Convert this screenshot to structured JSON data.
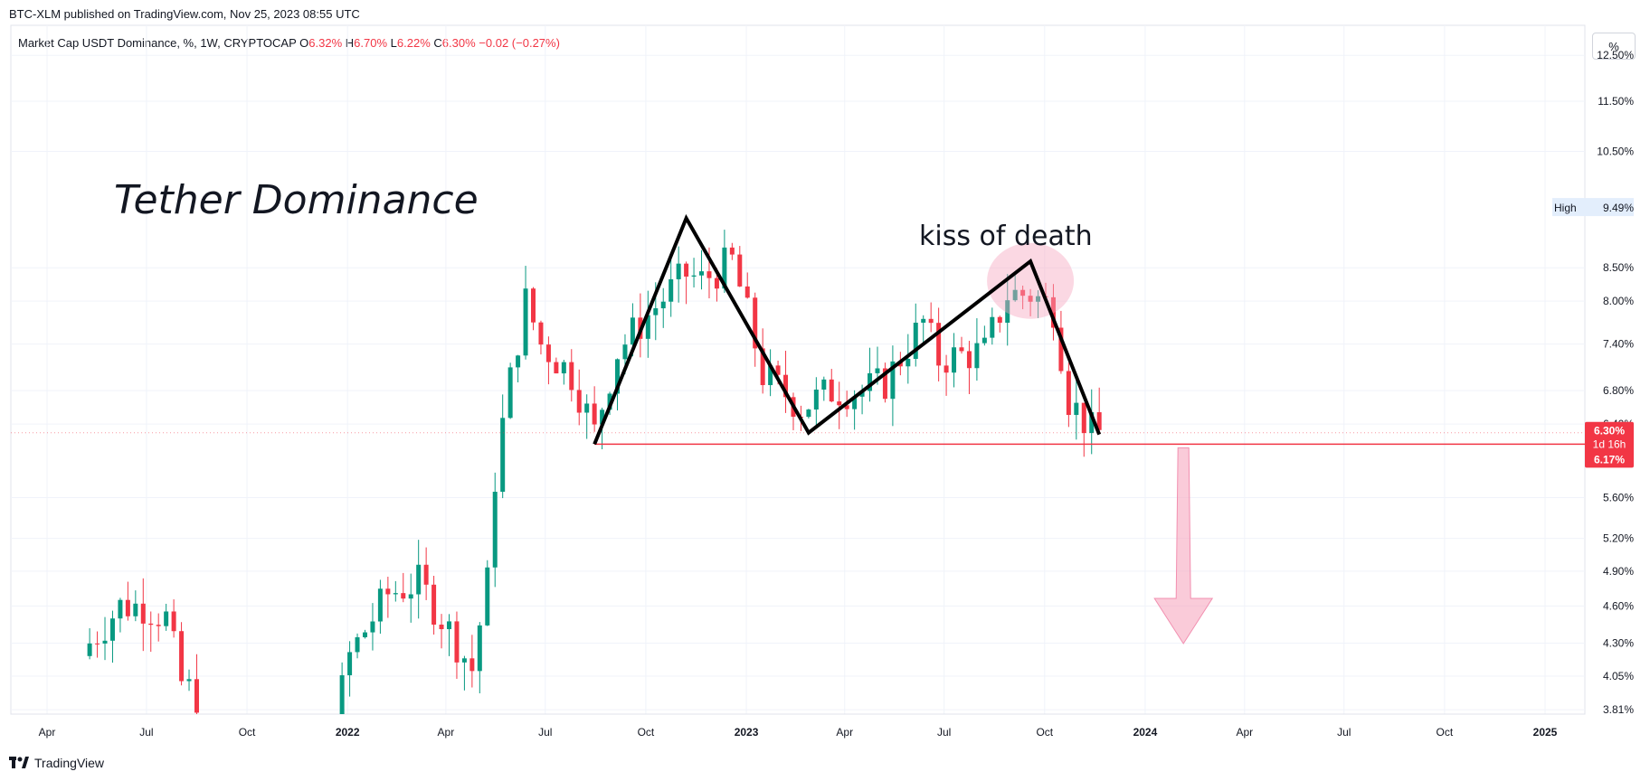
{
  "header": {
    "published": "BTC-XLM published on TradingView.com, Nov 25, 2023 08:55 UTC"
  },
  "legend": {
    "symbol": "Market Cap USDT Dominance, %, 1W, CRYPTOCAP",
    "o_label": "O",
    "o_value": "6.32%",
    "h_label": "H",
    "h_value": "6.70%",
    "l_label": "L",
    "l_value": "6.22%",
    "c_label": "C",
    "c_value": "6.30%",
    "change": "−0.02 (−0.27%)"
  },
  "scale_button": "%",
  "footer": {
    "brand": "TradingView"
  },
  "colors": {
    "up": "#089981",
    "down": "#f23645",
    "pattern": "#000000",
    "arrow": "#f7a8c0"
  },
  "chart_data": {
    "type": "candlestick",
    "y_scale": "log",
    "ylim": [
      3.78,
      13.2
    ],
    "x_ticks": [
      "Apr",
      "Jul",
      "Oct",
      "2022",
      "Apr",
      "Jul",
      "Oct",
      "2023",
      "Apr",
      "Jul",
      "Oct",
      "2024",
      "Apr",
      "Jul",
      "Oct",
      "2025"
    ],
    "y_ticks": [
      "12.50%",
      "11.50%",
      "10.50%",
      "8.50%",
      "8.00%",
      "7.40%",
      "6.80%",
      "6.40%",
      "5.60%",
      "5.20%",
      "4.90%",
      "4.60%",
      "4.30%",
      "4.05%",
      "3.81%"
    ],
    "high_label": {
      "text": "High",
      "value": "9.49%",
      "y": 9.49
    },
    "last_price": {
      "value": "6.30%",
      "countdown": "1d 16h",
      "y": 6.3
    },
    "support": {
      "value": "6.17%",
      "y": 6.17
    },
    "annotations": {
      "title": "Tether Dominance",
      "kiss": "kiss of death"
    },
    "pattern_points": [
      {
        "date": "2022-08-15",
        "y": 6.17
      },
      {
        "date": "2022-11-07",
        "y": 9.3
      },
      {
        "date": "2023-02-27",
        "y": 6.3
      },
      {
        "date": "2023-09-18",
        "y": 8.6
      },
      {
        "date": "2023-11-20",
        "y": 6.28
      }
    ]
  }
}
